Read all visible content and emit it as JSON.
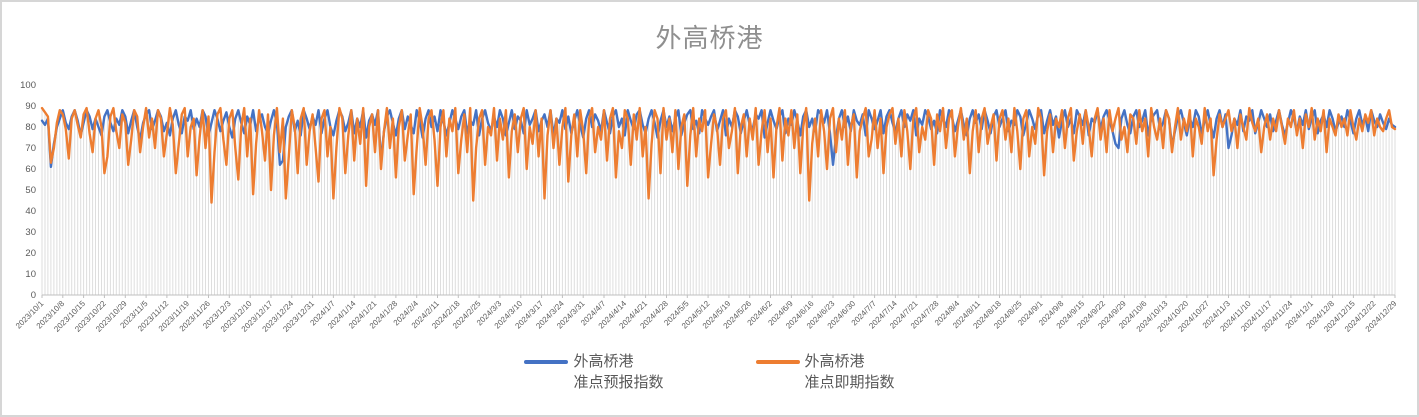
{
  "chart": {
    "title": "外高桥港",
    "legend": [
      {
        "line1": "外高桥港",
        "line2": "准点预报指数"
      },
      {
        "line1": "外高桥港",
        "line2": "准点即期指数"
      }
    ]
  },
  "chart_data": {
    "type": "line",
    "title": "外高桥港",
    "xlabel": "",
    "ylabel": "",
    "ylim": [
      0,
      100
    ],
    "y_ticks": [
      0,
      10,
      20,
      30,
      40,
      50,
      60,
      70,
      80,
      90,
      100
    ],
    "grid": "none",
    "drop_lines": true,
    "legend_position": "bottom",
    "x_tick_every_n_points": 7,
    "x_tick_labels": [
      "2023/10/1",
      "2023/10/8",
      "2023/10/15",
      "2023/10/22",
      "2023/10/29",
      "2023/11/5",
      "2023/11/12",
      "2023/11/19",
      "2023/11/26",
      "2023/12/3",
      "2023/12/10",
      "2023/12/17",
      "2023/12/24",
      "2023/12/31",
      "2024/1/7",
      "2024/1/14",
      "2024/1/21",
      "2024/1/28",
      "2024/2/4",
      "2024/2/11",
      "2024/2/18",
      "2024/2/25",
      "2024/3/3",
      "2024/3/10",
      "2024/3/17",
      "2024/3/24",
      "2024/3/31",
      "2024/4/7",
      "2024/4/14",
      "2024/4/21",
      "2024/4/28",
      "2024/5/5",
      "2024/5/12",
      "2024/5/19",
      "2024/5/26",
      "2024/6/2",
      "2024/6/9",
      "2024/6/16",
      "2024/6/23",
      "2024/6/30",
      "2024/7/7",
      "2024/7/14",
      "2024/7/21",
      "2024/7/28",
      "2024/8/4",
      "2024/8/11",
      "2024/8/18",
      "2024/8/25",
      "2024/9/1",
      "2024/9/8",
      "2024/9/15",
      "2024/9/22",
      "2024/9/29",
      "2024/10/6",
      "2024/10/13",
      "2024/10/20",
      "2024/10/27",
      "2024/11/3",
      "2024/11/10",
      "2024/11/17",
      "2024/11/24",
      "2024/12/1",
      "2024/12/8",
      "2024/12/15",
      "2024/12/22",
      "2024/12/29"
    ],
    "colors": {
      "series1": "#4472C4",
      "series2": "#ED7D31",
      "drop_line": "#dedede",
      "axis": "#bfbfbf",
      "tick_text": "#595959",
      "title_text": "#8f8f8f"
    },
    "series": [
      {
        "name": "外高桥港 准点预报指数",
        "color": "#4472C4",
        "values": [
          83,
          81,
          84,
          61,
          72,
          80,
          84,
          88,
          82,
          79,
          85,
          88,
          83,
          76,
          82,
          88,
          85,
          79,
          84,
          80,
          76,
          85,
          88,
          82,
          78,
          84,
          81,
          88,
          85,
          77,
          83,
          88,
          80,
          74,
          82,
          86,
          88,
          79,
          83,
          88,
          85,
          78,
          82,
          76,
          84,
          88,
          81,
          77,
          85,
          83,
          88,
          79,
          84,
          80,
          88,
          85,
          76,
          82,
          88,
          84,
          78,
          83,
          87,
          80,
          75,
          84,
          88,
          82,
          77,
          85,
          81,
          88,
          78,
          84,
          86,
          80,
          77,
          83,
          88,
          82,
          62,
          64,
          80,
          85,
          88,
          78,
          83,
          76,
          88,
          84,
          79,
          85,
          81,
          88,
          77,
          84,
          88,
          80,
          76,
          83,
          88,
          85,
          78,
          82,
          88,
          77,
          84,
          80,
          88,
          75,
          83,
          86,
          81,
          88,
          64,
          78,
          85,
          88,
          82,
          76,
          84,
          88,
          79,
          85,
          81,
          77,
          88,
          83,
          75,
          84,
          88,
          80,
          85,
          78,
          88,
          83,
          76,
          82,
          88,
          84,
          79,
          85,
          88,
          77,
          83,
          81,
          88,
          76,
          84,
          88,
          82,
          78,
          85,
          80,
          88,
          84,
          76,
          82,
          88,
          79,
          85,
          83,
          77,
          88,
          81,
          84,
          88,
          78,
          83,
          86,
          80,
          88,
          76,
          84,
          82,
          88,
          79,
          85,
          77,
          83,
          88,
          81,
          75,
          84,
          88,
          80,
          86,
          83,
          78,
          88,
          82,
          77,
          85,
          88,
          80,
          84,
          76,
          88,
          83,
          79,
          86,
          88,
          81,
          77,
          84,
          88,
          82,
          75,
          83,
          88,
          80,
          85,
          78,
          84,
          88,
          76,
          82,
          86,
          88,
          79,
          83,
          77,
          88,
          84,
          81,
          85,
          88,
          78,
          83,
          88,
          76,
          84,
          80,
          88,
          85,
          77,
          83,
          88,
          81,
          79,
          86,
          84,
          88,
          75,
          82,
          88,
          83,
          79,
          85,
          88,
          77,
          84,
          81,
          88,
          83,
          76,
          85,
          88,
          80,
          84,
          78,
          88,
          86,
          82,
          88,
          77,
          62,
          75,
          84,
          88,
          80,
          85,
          78,
          88,
          83,
          81,
          86,
          76,
          88,
          84,
          79,
          83,
          88,
          77,
          85,
          88,
          82,
          78,
          84,
          88,
          80,
          86,
          83,
          88,
          76,
          84,
          81,
          88,
          85,
          79,
          83,
          77,
          88,
          84,
          80,
          88,
          85,
          78,
          83,
          88,
          81,
          76,
          84,
          88,
          82,
          86,
          79,
          88,
          83,
          77,
          85,
          88,
          80,
          84,
          88,
          78,
          83,
          81,
          88,
          85,
          76,
          82,
          88,
          84,
          79,
          86,
          88,
          77,
          83,
          88,
          81,
          85,
          75,
          83,
          88,
          80,
          84,
          77,
          88,
          85,
          81,
          88,
          76,
          84,
          82,
          88,
          79,
          85,
          88,
          83,
          78,
          72,
          70,
          84,
          88,
          81,
          77,
          85,
          88,
          80,
          83,
          88,
          76,
          84,
          86,
          88,
          79,
          82,
          88,
          84,
          71,
          78,
          85,
          88,
          82,
          76,
          84,
          80,
          88,
          85,
          77,
          83,
          88,
          81,
          75,
          84,
          88,
          80,
          86,
          70,
          76,
          84,
          81,
          88,
          78,
          85,
          83,
          88,
          77,
          82,
          88,
          84,
          80,
          86,
          78,
          83,
          88,
          81,
          76,
          82,
          88,
          84,
          78,
          85,
          81,
          88,
          79,
          84,
          88,
          77,
          83,
          86,
          80,
          88,
          84,
          78,
          82,
          85,
          80,
          88,
          83,
          77,
          84,
          88,
          81,
          85,
          78,
          88,
          83,
          80,
          86,
          82,
          79,
          84,
          81,
          80
        ]
      },
      {
        "name": "外高桥港 准点即期指数",
        "color": "#ED7D31",
        "values": [
          89,
          87,
          85,
          63,
          70,
          82,
          88,
          86,
          79,
          65,
          84,
          88,
          81,
          75,
          86,
          89,
          77,
          68,
          84,
          88,
          80,
          58,
          66,
          85,
          89,
          78,
          70,
          86,
          82,
          62,
          74,
          88,
          85,
          68,
          80,
          89,
          75,
          84,
          70,
          88,
          84,
          66,
          77,
          89,
          81,
          58,
          72,
          86,
          89,
          66,
          80,
          84,
          57,
          75,
          88,
          70,
          85,
          44,
          68,
          86,
          89,
          74,
          62,
          84,
          88,
          70,
          55,
          80,
          89,
          66,
          84,
          48,
          72,
          88,
          78,
          64,
          86,
          50,
          76,
          89,
          68,
          84,
          46,
          66,
          88,
          80,
          58,
          84,
          89,
          62,
          78,
          86,
          70,
          54,
          84,
          88,
          66,
          80,
          46,
          70,
          89,
          84,
          58,
          76,
          88,
          64,
          84,
          72,
          89,
          52,
          80,
          86,
          68,
          88,
          60,
          78,
          89,
          70,
          84,
          56,
          80,
          88,
          64,
          76,
          86,
          48,
          70,
          89,
          80,
          62,
          84,
          88,
          74,
          52,
          80,
          88,
          66,
          84,
          78,
          89,
          58,
          74,
          86,
          68,
          89,
          45,
          70,
          84,
          88,
          62,
          80,
          76,
          89,
          64,
          84,
          74,
          88,
          56,
          78,
          86,
          68,
          84,
          89,
          60,
          80,
          72,
          88,
          66,
          84,
          46,
          76,
          88,
          70,
          84,
          62,
          80,
          89,
          54,
          76,
          86,
          66,
          88,
          78,
          58,
          84,
          89,
          68,
          80,
          74,
          88,
          64,
          84,
          89,
          56,
          78,
          70,
          88,
          84,
          62,
          86,
          74,
          89,
          66,
          80,
          46,
          72,
          88,
          84,
          58,
          89,
          74,
          84,
          68,
          88,
          60,
          80,
          86,
          52,
          76,
          89,
          66,
          84,
          78,
          88,
          56,
          72,
          86,
          80,
          62,
          84,
          88,
          70,
          78,
          89,
          58,
          80,
          86,
          66,
          84,
          74,
          89,
          62,
          78,
          88,
          68,
          84,
          56,
          80,
          89,
          64,
          84,
          76,
          88,
          70,
          86,
          58,
          80,
          89,
          45,
          72,
          84,
          66,
          88,
          78,
          60,
          84,
          89,
          68,
          84,
          74,
          88,
          62,
          80,
          86,
          56,
          78,
          84,
          89,
          66,
          74,
          88,
          70,
          84,
          58,
          80,
          86,
          89,
          72,
          84,
          66,
          88,
          78,
          60,
          84,
          89,
          68,
          80,
          74,
          88,
          84,
          62,
          86,
          78,
          89,
          70,
          84,
          88,
          66,
          80,
          89,
          74,
          84,
          58,
          78,
          88,
          68,
          84,
          89,
          72,
          80,
          86,
          64,
          84,
          88,
          74,
          84,
          68,
          89,
          78,
          60,
          84,
          88,
          66,
          80,
          72,
          89,
          84,
          57,
          78,
          86,
          68,
          84,
          80,
          88,
          70,
          84,
          89,
          64,
          78,
          86,
          72,
          88,
          80,
          66,
          84,
          89,
          74,
          84,
          68,
          88,
          78,
          84,
          89,
          74,
          80,
          68,
          86,
          84,
          72,
          88,
          78,
          84,
          66,
          89,
          80,
          74,
          84,
          70,
          88,
          84,
          68,
          80,
          89,
          74,
          84,
          78,
          88,
          66,
          84,
          80,
          72,
          89,
          78,
          84,
          57,
          74,
          86,
          80,
          84,
          88,
          78,
          84,
          70,
          86,
          80,
          74,
          89,
          82,
          78,
          84,
          68,
          80,
          86,
          74,
          84,
          78,
          88,
          80,
          72,
          84,
          80,
          88,
          76,
          84,
          70,
          86,
          80,
          89,
          74,
          84,
          78,
          88,
          68,
          84,
          80,
          76,
          86,
          80,
          84,
          76,
          88,
          80,
          74,
          84,
          78,
          86,
          82,
          88,
          76,
          84,
          80,
          78,
          84,
          88,
          80,
          79
        ]
      }
    ]
  }
}
